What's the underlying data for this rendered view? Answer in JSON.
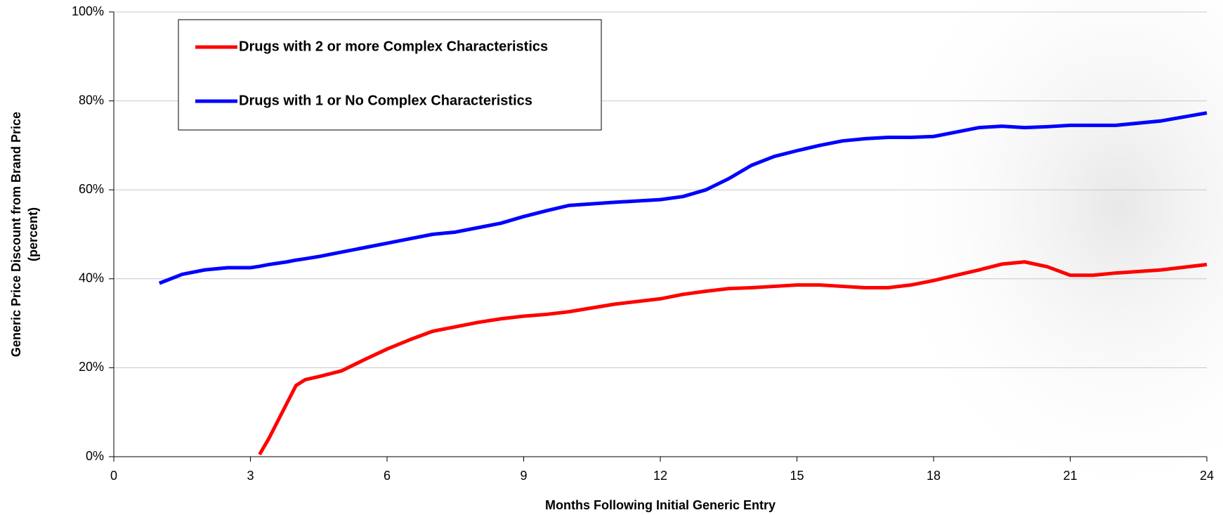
{
  "chart_data": {
    "type": "line",
    "x_label": "Months Following Initial Generic Entry",
    "y_label": [
      "Generic Price Discount from Brand Price",
      "(percent)"
    ],
    "x": [
      1,
      1.5,
      2,
      2.5,
      3,
      3.2,
      3.4,
      3.6,
      3.8,
      4,
      4.2,
      4.5,
      5,
      5.5,
      6,
      6.5,
      7,
      7.5,
      8,
      8.5,
      9,
      9.5,
      10,
      11,
      12,
      12.5,
      13,
      13.5,
      14,
      14.5,
      15,
      15.5,
      16,
      16.5,
      17,
      17.5,
      18,
      18.5,
      19,
      19.5,
      20,
      20.5,
      21,
      21.5,
      22,
      23,
      24
    ],
    "series": [
      {
        "name": "Drugs with 2 or more Complex Characteristics",
        "color": "#ff0000",
        "values": [
          null,
          null,
          null,
          null,
          null,
          0.5,
          4,
          8,
          12,
          16,
          17.3,
          18,
          19.3,
          21.8,
          24.2,
          26.3,
          28.2,
          29.2,
          30.2,
          31,
          31.6,
          32,
          32.6,
          34.3,
          35.5,
          36.5,
          37.2,
          37.8,
          38,
          38.3,
          38.6,
          38.6,
          38.3,
          38,
          38,
          38.6,
          39.6,
          40.8,
          42,
          43.3,
          43.8,
          42.7,
          40.8,
          40.8,
          41.3,
          42,
          43.2
        ]
      },
      {
        "name": "Drugs with 1 or No Complex Characteristics",
        "color": "#0000ff",
        "values": [
          39,
          41,
          42,
          42.5,
          42.5,
          42.8,
          43.2,
          43.5,
          43.8,
          44.2,
          44.5,
          45,
          46,
          47,
          48,
          49,
          50,
          50.5,
          51.5,
          52.5,
          54,
          55.3,
          56.5,
          57.2,
          57.8,
          58.5,
          60,
          62.5,
          65.5,
          67.5,
          68.8,
          70,
          71,
          71.5,
          71.8,
          71.8,
          72,
          73,
          74,
          74.3,
          74,
          74.2,
          74.5,
          74.5,
          74.5,
          75.5,
          77.3
        ]
      }
    ],
    "xlim": [
      0,
      24
    ],
    "xticks": [
      0,
      3,
      6,
      9,
      12,
      15,
      18,
      21,
      24
    ],
    "ylim": [
      0,
      100
    ],
    "yticks": [
      {
        "value": 0,
        "label": "0%"
      },
      {
        "value": 20,
        "label": "20%"
      },
      {
        "value": 40,
        "label": "40%"
      },
      {
        "value": 60,
        "label": "60%"
      },
      {
        "value": 80,
        "label": "80%"
      },
      {
        "value": 100,
        "label": "100%"
      }
    ],
    "grid": true,
    "legend": "upper-left"
  }
}
